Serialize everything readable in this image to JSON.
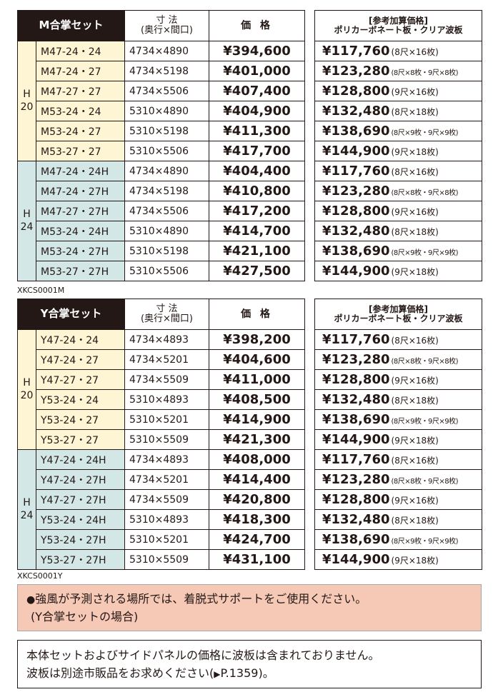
{
  "tables": [
    {
      "code": "XKCS0001M",
      "title": "M合掌セット",
      "dim_header": [
        "寸 法",
        "(奥行×間口)"
      ],
      "price_header": "価 格",
      "add_header": [
        "[参考加算価格]",
        "ポリカーボネート板・クリア波板"
      ],
      "groups": [
        {
          "label": [
            "H",
            "20"
          ],
          "rows": [
            {
              "model": "M47-24・24",
              "size": "4734×4890",
              "price": "¥394,600",
              "add": "¥117,760",
              "note": "(8尺×16枚)"
            },
            {
              "model": "M47-24・27",
              "size": "4734×5198",
              "price": "¥401,000",
              "add": "¥123,280",
              "note": "(8尺×8枚・9尺×8枚)"
            },
            {
              "model": "M47-27・27",
              "size": "4734×5506",
              "price": "¥407,400",
              "add": "¥128,800",
              "note": "(9尺×16枚)"
            },
            {
              "model": "M53-24・24",
              "size": "5310×4890",
              "price": "¥404,900",
              "add": "¥132,480",
              "note": "(8尺×18枚)"
            },
            {
              "model": "M53-24・27",
              "size": "5310×5198",
              "price": "¥411,300",
              "add": "¥138,690",
              "note": "(8尺×9枚・9尺×9枚)"
            },
            {
              "model": "M53-27・27",
              "size": "5310×5506",
              "price": "¥417,700",
              "add": "¥144,900",
              "note": "(9尺×18枚)"
            }
          ]
        },
        {
          "label": [
            "H",
            "24"
          ],
          "rows": [
            {
              "model": "M47-24・24H",
              "size": "4734×4890",
              "price": "¥404,400",
              "add": "¥117,760",
              "note": "(8尺×16枚)"
            },
            {
              "model": "M47-24・27H",
              "size": "4734×5198",
              "price": "¥410,800",
              "add": "¥123,280",
              "note": "(8尺×8枚・9尺×8枚)"
            },
            {
              "model": "M47-27・27H",
              "size": "4734×5506",
              "price": "¥417,200",
              "add": "¥128,800",
              "note": "(9尺×16枚)"
            },
            {
              "model": "M53-24・24H",
              "size": "5310×4890",
              "price": "¥414,700",
              "add": "¥132,480",
              "note": "(8尺×18枚)"
            },
            {
              "model": "M53-24・27H",
              "size": "5310×5198",
              "price": "¥421,100",
              "add": "¥138,690",
              "note": "(8尺×9枚・9尺×9枚)"
            },
            {
              "model": "M53-27・27H",
              "size": "5310×5506",
              "price": "¥427,500",
              "add": "¥144,900",
              "note": "(9尺×18枚)"
            }
          ]
        }
      ]
    },
    {
      "code": "XKCS0001Y",
      "title": "Y合掌セット",
      "dim_header": [
        "寸 法",
        "(奥行×間口)"
      ],
      "price_header": "価 格",
      "add_header": [
        "[参考加算価格]",
        "ポリカーボネート板・クリア波板"
      ],
      "groups": [
        {
          "label": [
            "H",
            "20"
          ],
          "rows": [
            {
              "model": "Y47-24・24",
              "size": "4734×4893",
              "price": "¥398,200",
              "add": "¥117,760",
              "note": "(8尺×16枚)"
            },
            {
              "model": "Y47-24・27",
              "size": "4734×5201",
              "price": "¥404,600",
              "add": "¥123,280",
              "note": "(8尺×8枚・9尺×8枚)"
            },
            {
              "model": "Y47-27・27",
              "size": "4734×5509",
              "price": "¥411,000",
              "add": "¥128,800",
              "note": "(9尺×16枚)"
            },
            {
              "model": "Y53-24・24",
              "size": "5310×4893",
              "price": "¥408,500",
              "add": "¥132,480",
              "note": "(8尺×18枚)"
            },
            {
              "model": "Y53-24・27",
              "size": "5310×5201",
              "price": "¥414,900",
              "add": "¥138,690",
              "note": "(8尺×9枚・9尺×9枚)"
            },
            {
              "model": "Y53-27・27",
              "size": "5310×5509",
              "price": "¥421,300",
              "add": "¥144,900",
              "note": "(9尺×18枚)"
            }
          ]
        },
        {
          "label": [
            "H",
            "24"
          ],
          "rows": [
            {
              "model": "Y47-24・24H",
              "size": "4734×4893",
              "price": "¥408,000",
              "add": "¥117,760",
              "note": "(8尺×16枚)"
            },
            {
              "model": "Y47-24・27H",
              "size": "4734×5201",
              "price": "¥414,400",
              "add": "¥123,280",
              "note": "(8尺×8枚・9尺×8枚)"
            },
            {
              "model": "Y47-27・27H",
              "size": "4734×5509",
              "price": "¥420,800",
              "add": "¥128,800",
              "note": "(9尺×16枚)"
            },
            {
              "model": "Y53-24・24H",
              "size": "5310×4893",
              "price": "¥418,300",
              "add": "¥132,480",
              "note": "(8尺×18枚)"
            },
            {
              "model": "Y53-24・27H",
              "size": "5310×5201",
              "price": "¥424,700",
              "add": "¥138,690",
              "note": "(8尺×9枚・9尺×9枚)"
            },
            {
              "model": "Y53-27・27H",
              "size": "5310×5509",
              "price": "¥431,100",
              "add": "¥144,900",
              "note": "(9尺×18枚)"
            }
          ]
        }
      ]
    }
  ],
  "notes": {
    "warning": {
      "bullet": "●",
      "line1": "強風が予測される場所では、着脱式サポートをご使用ください。",
      "line2": "(Y合掌セットの場合)"
    },
    "info": {
      "line1": "本体セットおよびサイドパネルの価格に波板は含まれておりません。",
      "line2_pre": "波板は別途市販品をお求めください(",
      "arrow": "▶",
      "line2_ref": "P.1359",
      "line2_post": ")。"
    }
  },
  "colors": {
    "h20_bg": "#fdf5d4",
    "h24_bg": "#d3e8e6",
    "header_dark": "#231815",
    "warning_bg": "#f6c8b6"
  }
}
